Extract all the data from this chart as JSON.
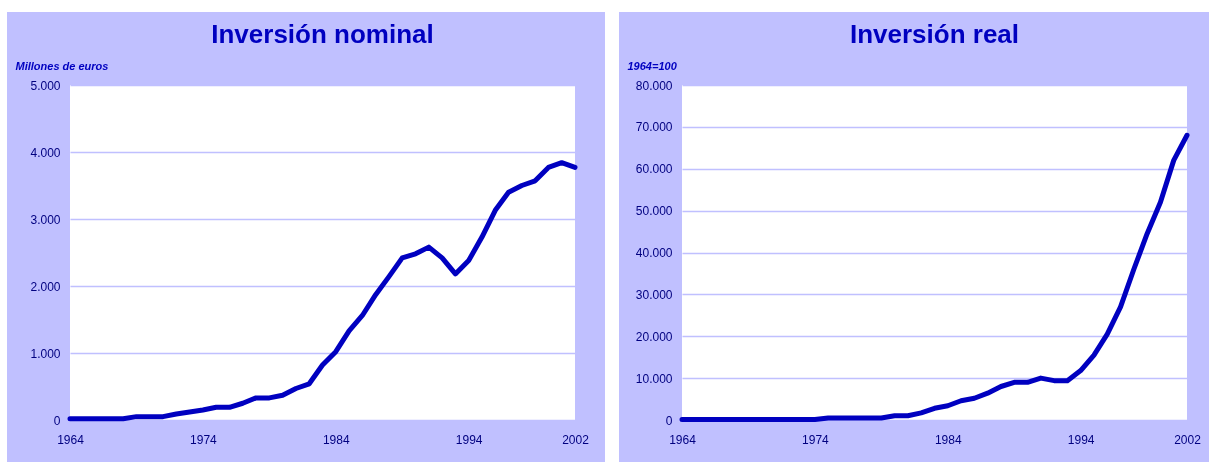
{
  "chart_data": [
    {
      "type": "line",
      "title": "Inversión nominal",
      "ylabel": "Millones de euros",
      "x": [
        1964,
        1965,
        1966,
        1967,
        1968,
        1969,
        1970,
        1971,
        1972,
        1973,
        1974,
        1975,
        1976,
        1977,
        1978,
        1979,
        1980,
        1981,
        1982,
        1983,
        1984,
        1985,
        1986,
        1987,
        1988,
        1989,
        1990,
        1991,
        1992,
        1993,
        1994,
        1995,
        1996,
        1997,
        1998,
        1999,
        2000,
        2001,
        2002
      ],
      "series": [
        {
          "color": "#0000c0",
          "values": [
            20,
            20,
            20,
            20,
            20,
            50,
            50,
            50,
            90,
            120,
            150,
            190,
            190,
            250,
            330,
            330,
            370,
            470,
            540,
            820,
            1020,
            1330,
            1560,
            1870,
            2140,
            2420,
            2480,
            2580,
            2420,
            2180,
            2380,
            2730,
            3130,
            3400,
            3500,
            3570,
            3770,
            3840,
            3770
          ]
        }
      ],
      "xlim": [
        1964,
        2002
      ],
      "xticks": [
        1964,
        1974,
        1984,
        1994,
        2002
      ],
      "ylim": [
        0,
        5000
      ],
      "yticks": [
        0,
        {
          "value": 1000,
          "label": "1.000"
        },
        {
          "value": 2000,
          "label": "2.000"
        },
        {
          "value": 3000,
          "label": "3.000"
        },
        {
          "value": 4000,
          "label": "4.000"
        },
        {
          "value": 5000,
          "label": "5.000"
        }
      ],
      "grid": "y"
    },
    {
      "type": "line",
      "title": "Inversión real",
      "ylabel": "1964=100",
      "x": [
        1964,
        1965,
        1966,
        1967,
        1968,
        1969,
        1970,
        1971,
        1972,
        1973,
        1974,
        1975,
        1976,
        1977,
        1978,
        1979,
        1980,
        1981,
        1982,
        1983,
        1984,
        1985,
        1986,
        1987,
        1988,
        1989,
        1990,
        1991,
        1992,
        1993,
        1994,
        1995,
        1996,
        1997,
        1998,
        1999,
        2000,
        2001,
        2002
      ],
      "series": [
        {
          "color": "#0000c0",
          "values": [
            100,
            100,
            100,
            100,
            100,
            100,
            100,
            100,
            100,
            100,
            100,
            500,
            500,
            500,
            500,
            500,
            1000,
            1000,
            1700,
            2800,
            3400,
            4600,
            5200,
            6400,
            8000,
            9000,
            9000,
            10000,
            9400,
            9400,
            11800,
            15500,
            20500,
            27000,
            36000,
            44500,
            52000,
            62000,
            68000
          ]
        }
      ],
      "xlim": [
        1964,
        2002
      ],
      "xticks": [
        1964,
        1974,
        1984,
        1994,
        2002
      ],
      "ylim": [
        0,
        80000
      ],
      "yticks": [
        0,
        {
          "value": 10000,
          "label": "10.000"
        },
        {
          "value": 20000,
          "label": "20.000"
        },
        {
          "value": 30000,
          "label": "30.000"
        },
        {
          "value": 40000,
          "label": "40.000"
        },
        {
          "value": 50000,
          "label": "50.000"
        },
        {
          "value": 60000,
          "label": "60.000"
        },
        {
          "value": 70000,
          "label": "70.000"
        },
        {
          "value": 80000,
          "label": "80.000"
        }
      ],
      "grid": "y"
    }
  ]
}
